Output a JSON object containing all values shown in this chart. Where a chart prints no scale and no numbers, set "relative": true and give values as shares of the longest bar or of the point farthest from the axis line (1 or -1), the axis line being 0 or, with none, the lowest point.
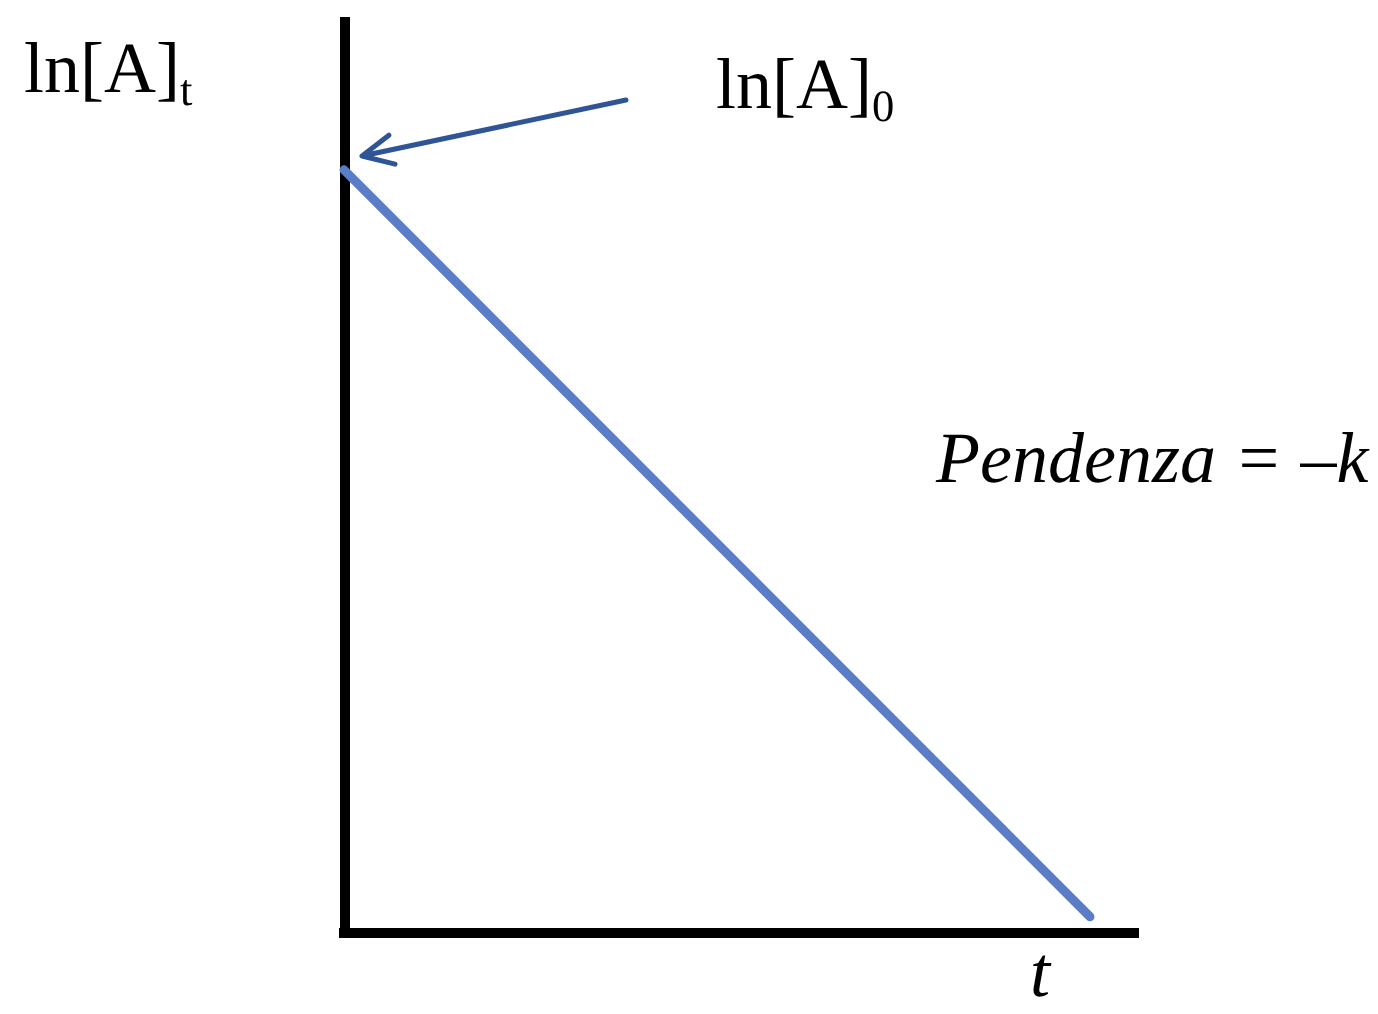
{
  "chart_data": {
    "type": "line",
    "relative": true,
    "categories": [
      null,
      null
    ],
    "values": [
      1,
      0.02
    ],
    "color": "#5b7cc6",
    "xlabel": "t",
    "ylabel": "ln[A]$_{t}$",
    "annotations": [
      "ln[A]$_{0}$",
      "Pendenza = –k"
    ],
    "marker": "none",
    "line_style": "solid"
  }
}
